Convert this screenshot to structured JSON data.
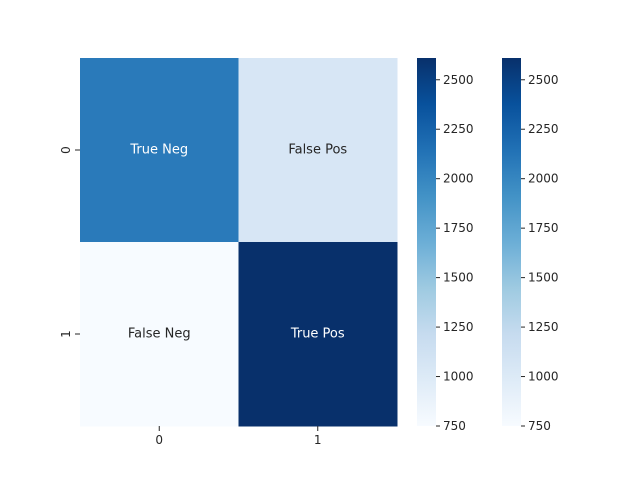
{
  "chart_data": {
    "type": "heatmap",
    "title": "",
    "xlabel": "",
    "ylabel": "",
    "x_categories": [
      "0",
      "1"
    ],
    "y_categories": [
      "0",
      "1"
    ],
    "values": [
      [
        2080,
        1050
      ],
      [
        750,
        2610
      ]
    ],
    "annotations": [
      [
        "True Neg",
        "False Pos"
      ],
      [
        "False Neg",
        "True Pos"
      ]
    ],
    "colormap": "Blues",
    "colormap_low": "#f7fbff",
    "colormap_high": "#08306b",
    "vmin": 750,
    "vmax": 2610,
    "colorbar_ticks": [
      "750",
      "1000",
      "1250",
      "1500",
      "1750",
      "2000",
      "2250",
      "2500"
    ],
    "colorbar_count": 2,
    "grid": false
  }
}
